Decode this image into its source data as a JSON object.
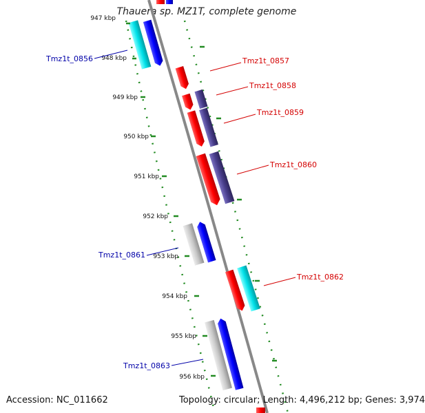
{
  "title": "Thauera sp. MZ1T, complete genome",
  "footer": {
    "accession": "Accession: NC_011662",
    "summary": "Topology: circular; Length: 4,496,212 bp; Genes: 3,974"
  },
  "colors": {
    "forward_label": "#d40000",
    "reverse_label": "#0000a8",
    "red_gene": "#ff0000",
    "blue_gene": "#0000ff",
    "cyan_gene": "#00d8e0",
    "purple_gene": "#483d8b",
    "gray_gene": "#c8c8c8",
    "backbone": "#888888",
    "ticks": "#228b22"
  },
  "ticks": [
    "947 kbp",
    "948 kbp",
    "949 kbp",
    "950 kbp",
    "951 kbp",
    "952 kbp",
    "953 kbp",
    "954 kbp",
    "955 kbp",
    "956 kbp"
  ],
  "genes": [
    {
      "label": "Tmz1t_0856",
      "strand": "reverse"
    },
    {
      "label": "Tmz1t_0857",
      "strand": "forward"
    },
    {
      "label": "Tmz1t_0858",
      "strand": "forward"
    },
    {
      "label": "Tmz1t_0859",
      "strand": "forward"
    },
    {
      "label": "Tmz1t_0860",
      "strand": "forward"
    },
    {
      "label": "Tmz1t_0861",
      "strand": "reverse"
    },
    {
      "label": "Tmz1t_0862",
      "strand": "forward"
    },
    {
      "label": "Tmz1t_0863",
      "strand": "reverse"
    }
  ]
}
